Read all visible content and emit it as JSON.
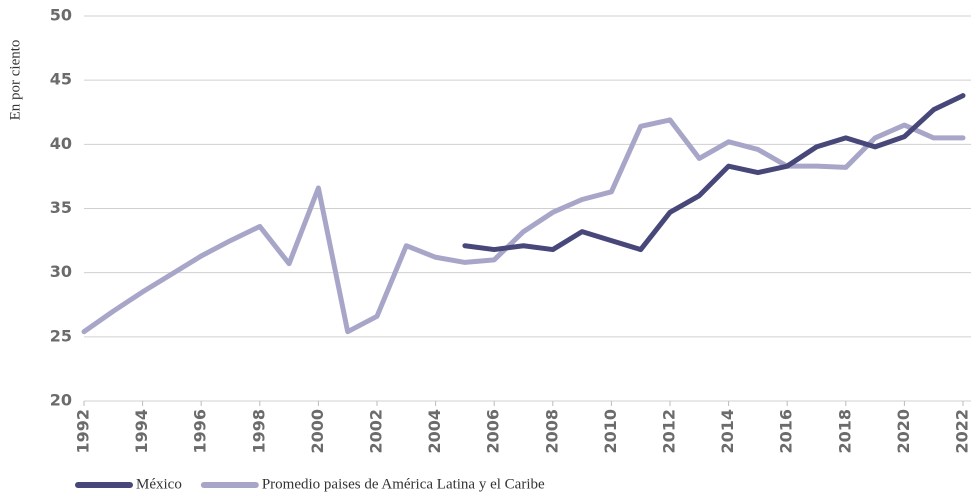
{
  "chart_data": {
    "type": "line",
    "y_label": "En por ciento",
    "x": [
      1992,
      1993,
      1994,
      1995,
      1996,
      1997,
      1998,
      1999,
      2000,
      2001,
      2002,
      2003,
      2004,
      2005,
      2006,
      2007,
      2008,
      2009,
      2010,
      2011,
      2012,
      2013,
      2014,
      2015,
      2016,
      2017,
      2018,
      2019,
      2020,
      2021,
      2022
    ],
    "series": [
      {
        "name": "México",
        "color": "#48477a",
        "values": [
          null,
          null,
          null,
          null,
          null,
          null,
          null,
          null,
          null,
          null,
          null,
          null,
          null,
          32.1,
          31.8,
          32.1,
          31.8,
          33.2,
          32.5,
          31.8,
          34.7,
          36.0,
          38.3,
          37.8,
          38.3,
          39.8,
          40.5,
          39.8,
          40.6,
          42.7,
          43.8
        ]
      },
      {
        "name": "Promedio paises de América Latina y el Caribe",
        "color": "#a8a6c8",
        "values": [
          25.4,
          27.0,
          28.5,
          29.9,
          31.3,
          32.5,
          33.6,
          30.7,
          36.6,
          25.4,
          26.6,
          32.1,
          31.2,
          30.8,
          31.0,
          33.2,
          34.7,
          35.7,
          36.3,
          41.4,
          41.9,
          38.9,
          40.2,
          39.6,
          38.3,
          38.3,
          38.2,
          40.5,
          41.5,
          40.5,
          40.5
        ]
      }
    ],
    "xlim": [
      1992,
      2022
    ],
    "xticks": [
      1992,
      1994,
      1996,
      1998,
      2000,
      2002,
      2004,
      2006,
      2008,
      2010,
      2012,
      2014,
      2016,
      2018,
      2020,
      2022
    ],
    "ylim": [
      20,
      50
    ],
    "yticks": [
      20,
      25,
      30,
      35,
      40,
      45,
      50
    ],
    "grid": true,
    "legend": "bottom"
  }
}
